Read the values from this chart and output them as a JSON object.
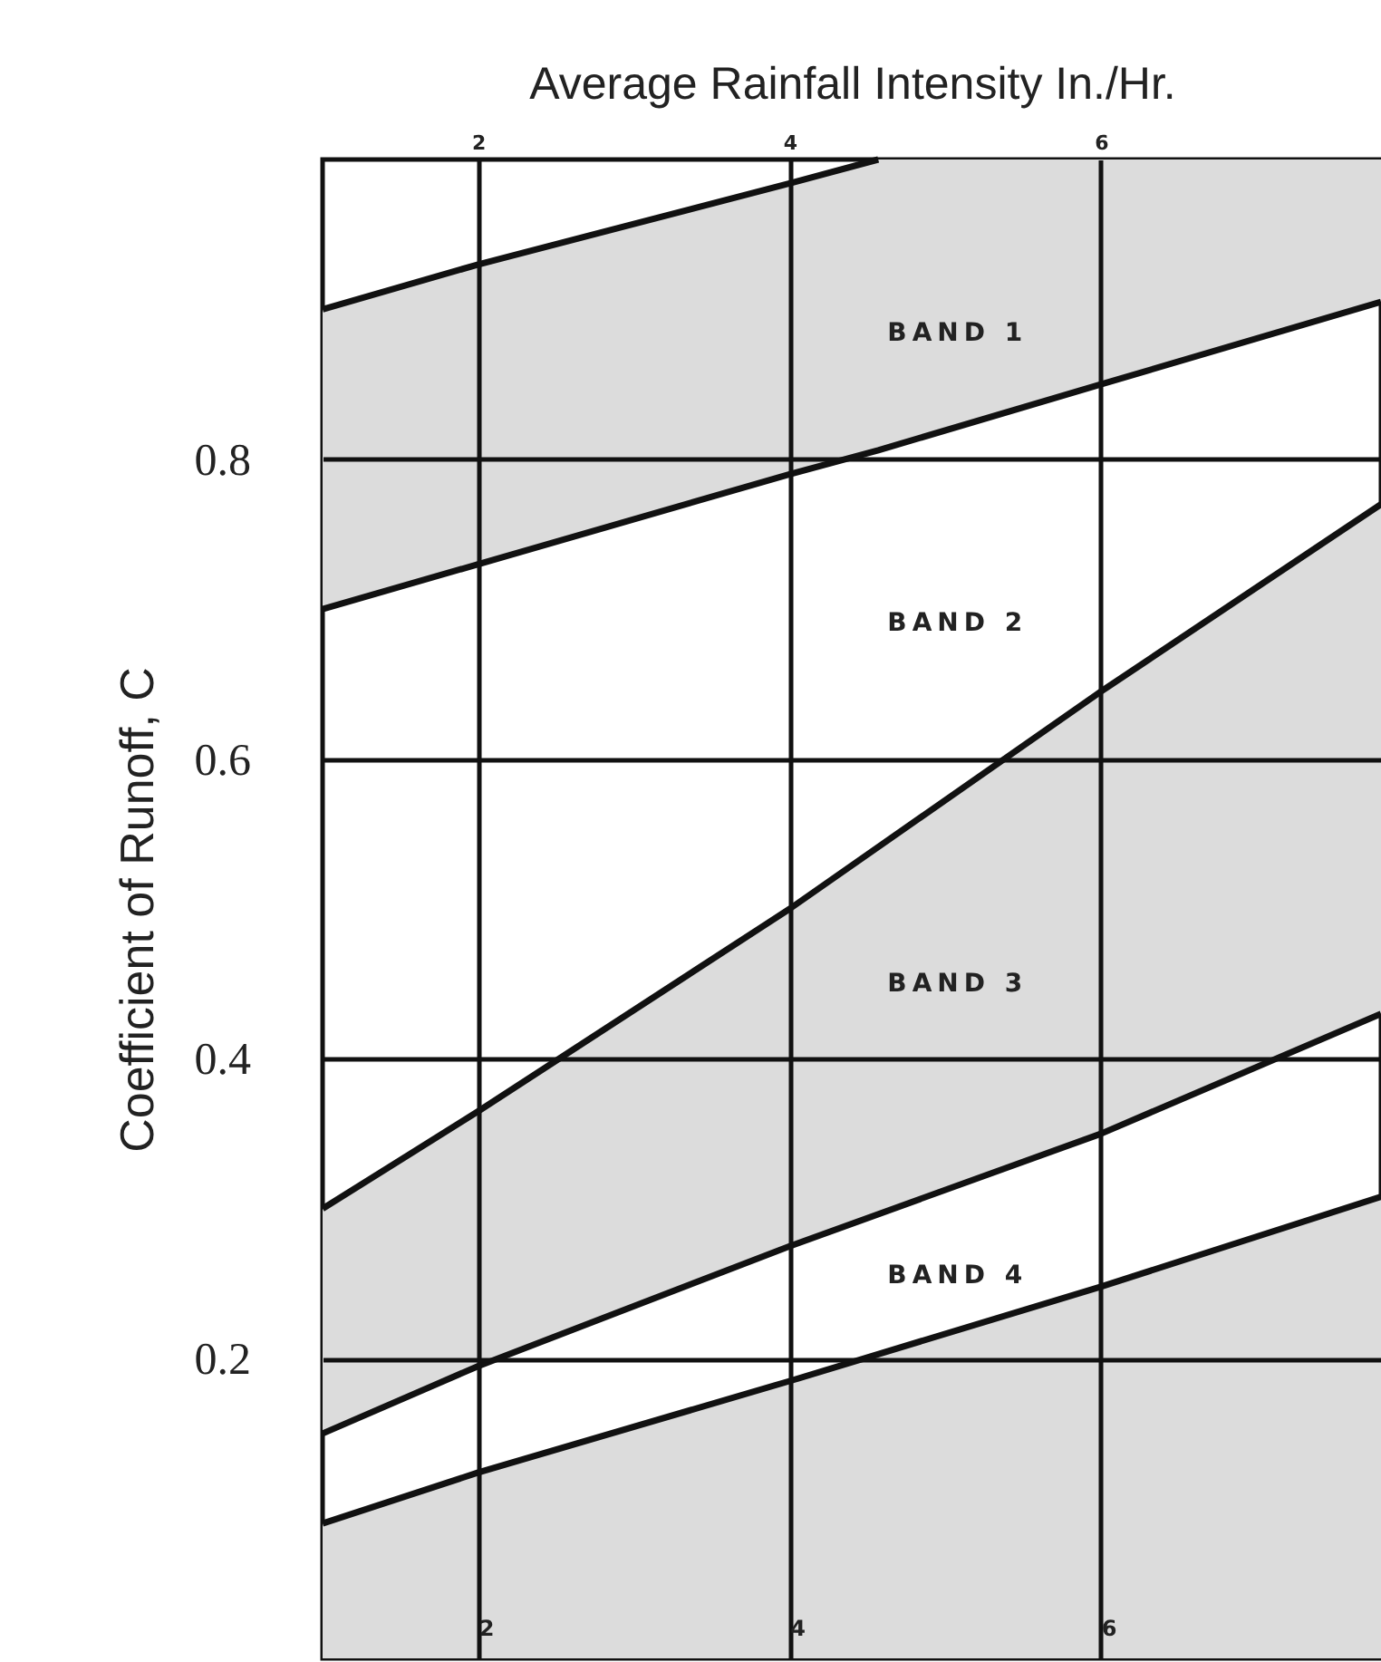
{
  "chart_data": {
    "type": "line",
    "x2label": "Average Rainfall Intensity In./Hr.",
    "ylabel": "Coefficient of Runoff, C",
    "series": [
      {
        "color": "#111111",
        "x": [
          1,
          2,
          4,
          6,
          7.8
        ],
        "values": [
          0.09,
          0.124,
          0.185,
          0.248,
          0.308
        ],
        "lower": [
          0,
          0,
          0,
          0,
          0
        ],
        "upper": [
          0.09,
          0.124,
          0.185,
          0.248,
          0.308
        ]
      },
      {
        "color": "#111111",
        "x": [
          1,
          2,
          4,
          6,
          7.8
        ],
        "values": [
          0.15,
          0.195,
          0.275,
          0.35,
          0.43
        ],
        "lower": [
          0.15,
          0.195,
          0.275,
          0.35,
          0.43
        ],
        "upper": [
          0.3,
          0.365,
          0.5,
          0.645,
          0.77
        ]
      },
      {
        "color": "#111111",
        "x": [
          1,
          2,
          4,
          6,
          7.8
        ],
        "values": [
          0.3,
          0.365,
          0.5,
          0.645,
          0.77
        ]
      },
      {
        "color": "#111111",
        "x": [
          1,
          2,
          4,
          4.57,
          6,
          7.8
        ],
        "values": [
          0.7,
          0.73,
          0.79,
          0.806,
          0.85,
          0.905
        ],
        "lower": [
          0.7,
          0.73,
          0.79,
          0.806,
          0.85,
          0.905
        ],
        "upper": [
          0.9,
          0.93,
          0.984,
          1.0,
          1.0,
          1.0
        ]
      },
      {
        "color": "#111111",
        "x": [
          1,
          2,
          4,
          4.57
        ],
        "values": [
          0.9,
          0.93,
          0.984,
          1.0
        ]
      }
    ],
    "annotations": [
      "BAND 1",
      "BAND 2",
      "BAND 3",
      "BAND 4"
    ],
    "xlim": [
      1,
      7.8
    ],
    "xticks": [
      2,
      4,
      6
    ],
    "x2lim": [
      1,
      7.8
    ],
    "x2ticks": [
      2,
      4,
      6
    ],
    "ylim": [
      0,
      1.0
    ],
    "yticks": [
      0.2,
      0.4,
      0.6,
      0.8
    ],
    "grid": true
  }
}
